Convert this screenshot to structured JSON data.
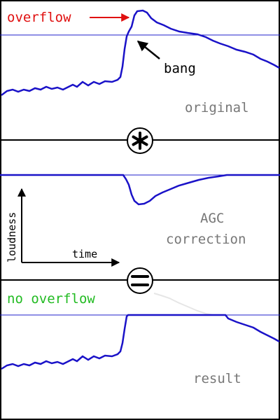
{
  "panels": {
    "original": {
      "label": "original",
      "overflow_label": "overflow",
      "annotation": "bang"
    },
    "correction": {
      "label_line1": "AGC",
      "label_line2": "correction"
    },
    "result": {
      "label": "result",
      "no_overflow_label": "no overflow"
    }
  },
  "axes": {
    "x_label": "time",
    "y_label": "loudness"
  },
  "operators": {
    "multiply_icon": "asterisk-in-circle-icon",
    "equals_icon": "equals-in-circle-icon"
  },
  "colors": {
    "curve": "#1a12c8",
    "limit_line": "#2222cc",
    "overflow_text": "#e01010",
    "no_overflow_text": "#22bb22",
    "panel_label": "#777777",
    "frame": "#000000"
  }
}
